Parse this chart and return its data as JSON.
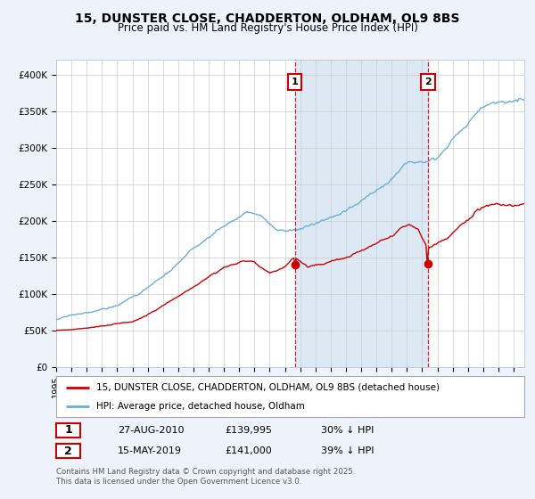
{
  "title_line1": "15, DUNSTER CLOSE, CHADDERTON, OLDHAM, OL9 8BS",
  "title_line2": "Price paid vs. HM Land Registry's House Price Index (HPI)",
  "ylabel_ticks": [
    "£0",
    "£50K",
    "£100K",
    "£150K",
    "£200K",
    "£250K",
    "£300K",
    "£350K",
    "£400K"
  ],
  "ytick_vals": [
    0,
    50000,
    100000,
    150000,
    200000,
    250000,
    300000,
    350000,
    400000
  ],
  "ylim": [
    0,
    420000
  ],
  "xlim_start": 1995.0,
  "xlim_end": 2025.7,
  "marker1_x": 2010.65,
  "marker1_y": 139995,
  "marker2_x": 2019.37,
  "marker2_y": 141000,
  "marker1_date": "27-AUG-2010",
  "marker1_price": "£139,995",
  "marker1_hpi": "30% ↓ HPI",
  "marker2_date": "15-MAY-2019",
  "marker2_price": "£141,000",
  "marker2_hpi": "39% ↓ HPI",
  "legend_label1": "15, DUNSTER CLOSE, CHADDERTON, OLDHAM, OL9 8BS (detached house)",
  "legend_label2": "HPI: Average price, detached house, Oldham",
  "footer": "Contains HM Land Registry data © Crown copyright and database right 2025.\nThis data is licensed under the Open Government Licence v3.0.",
  "line_red_color": "#cc0000",
  "line_blue_color": "#6baed6",
  "background_color": "#eef2fa",
  "plot_bg_color": "#ffffff",
  "shade_color": "#dce9f5",
  "grid_color": "#cccccc",
  "vline_color": "#cc0000",
  "box_color": "#cc0000"
}
